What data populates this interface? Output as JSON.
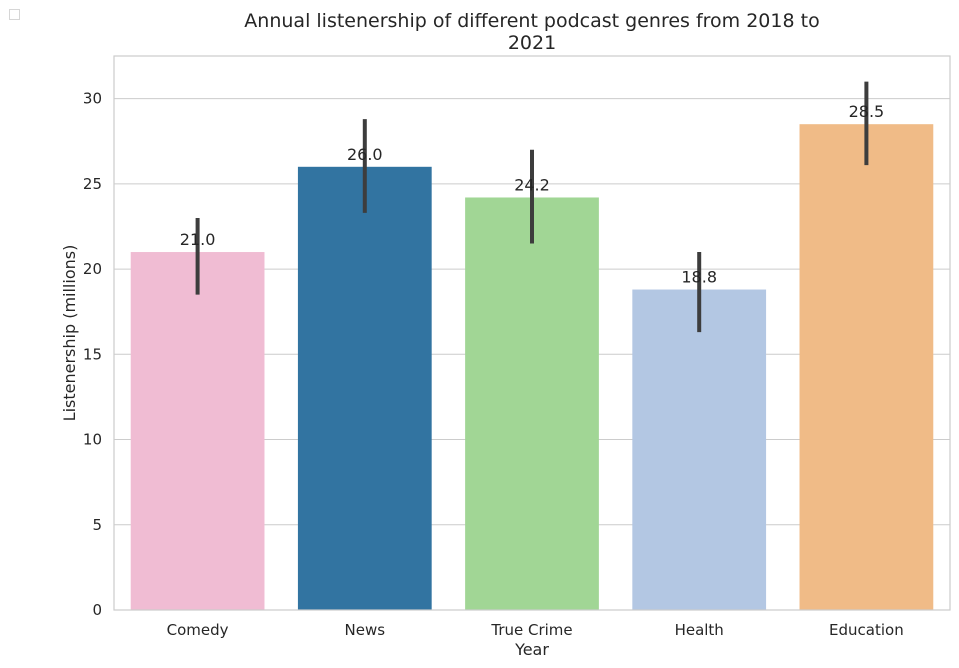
{
  "chart_data": {
    "type": "bar",
    "title_lines": [
      "Annual listenership of different podcast genres from 2018 to",
      "2021"
    ],
    "xlabel": "Year",
    "ylabel": "Listenership (millions)",
    "categories": [
      "Comedy",
      "News",
      "True Crime",
      "Health",
      "Education"
    ],
    "values": [
      21.0,
      26.0,
      24.2,
      18.8,
      28.5
    ],
    "value_labels": [
      "21.0",
      "26.0",
      "24.2",
      "18.8",
      "28.5"
    ],
    "error_bars": [
      [
        18.5,
        23.0
      ],
      [
        23.3,
        28.8
      ],
      [
        21.5,
        27.0
      ],
      [
        16.3,
        21.0
      ],
      [
        26.1,
        31.0
      ]
    ],
    "colors": [
      "#f0bcd3",
      "#3274a1",
      "#a1d695",
      "#b3c7e3",
      "#f0bb87"
    ],
    "error_color": "#3d3d3d",
    "ylim": [
      0,
      32.5
    ],
    "yticks": [
      0,
      5,
      10,
      15,
      20,
      25,
      30
    ],
    "ytick_labels": [
      "0",
      "5",
      "10",
      "15",
      "20",
      "25",
      "30"
    ],
    "grid": "horizontal",
    "grid_color": "#cccccc",
    "legend": "top-left (empty)"
  }
}
